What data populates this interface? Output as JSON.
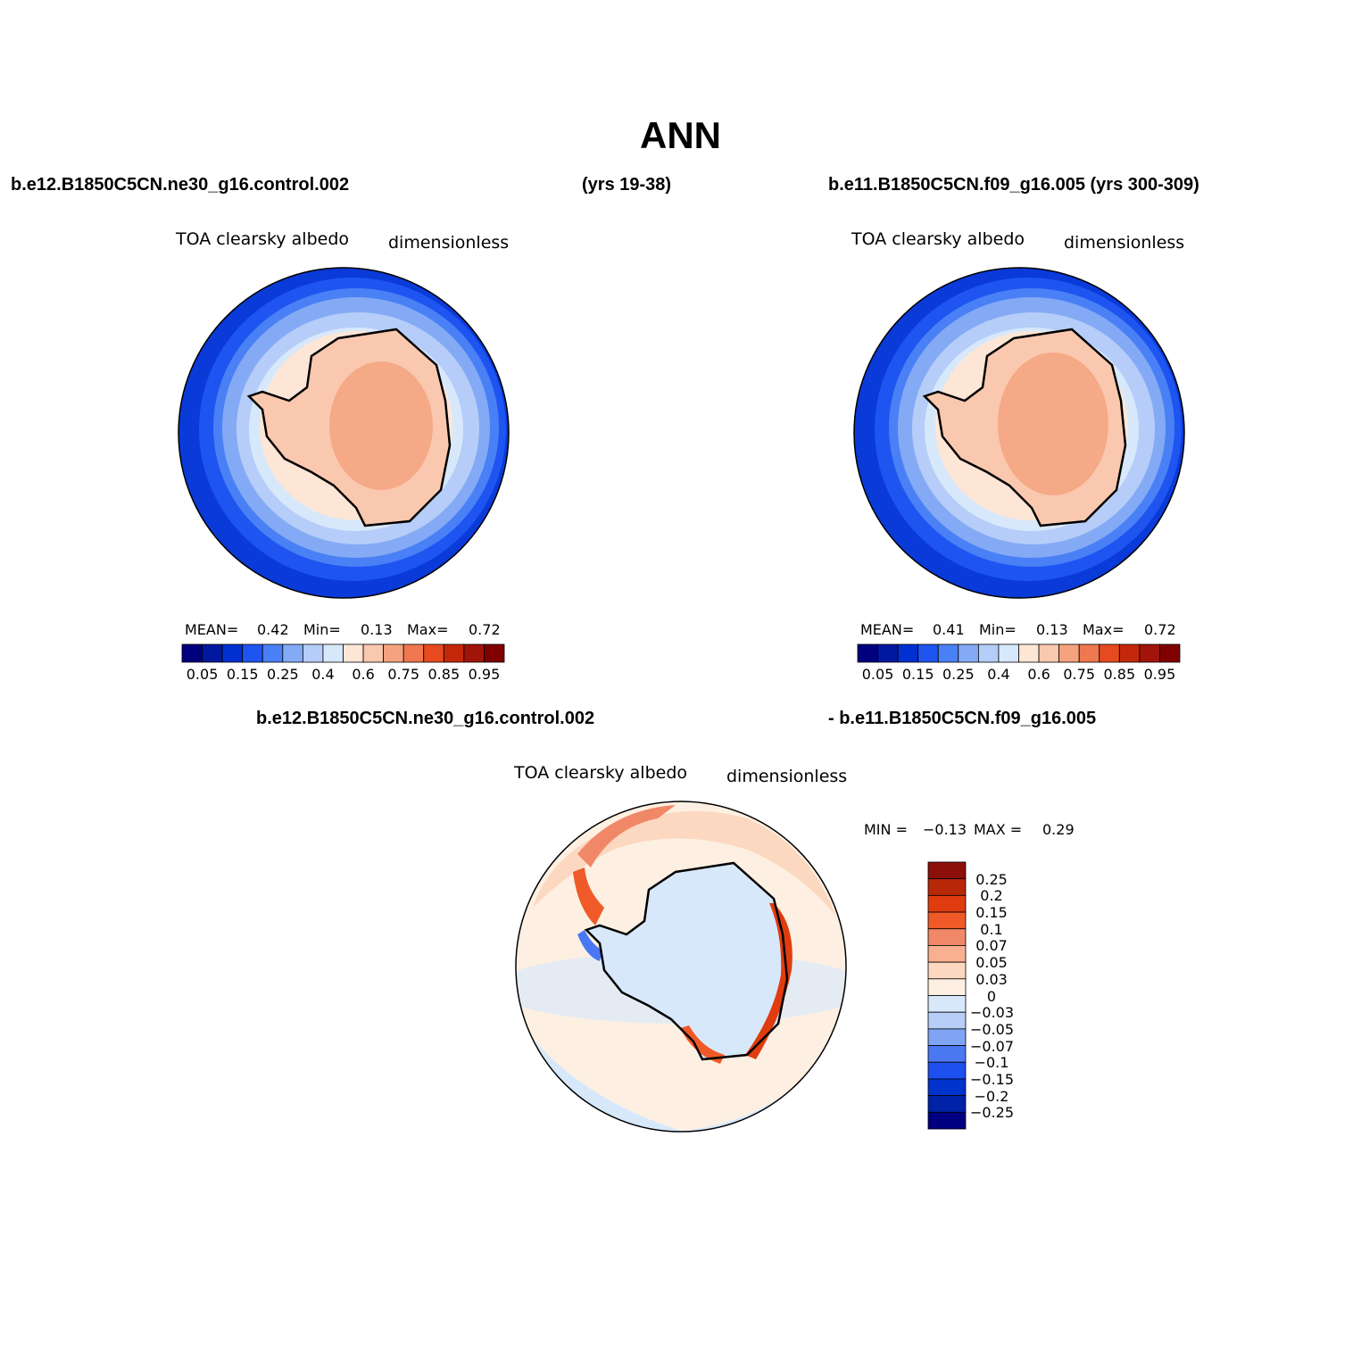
{
  "title": "ANN",
  "header": {
    "case1": "b.e12.B1850C5CN.ne30_g16.control.002",
    "case1_years": "(yrs 19-38)",
    "case2": "b.e11.B1850C5CN.f09_g16.005 (yrs 300-309)"
  },
  "panel1": {
    "variable": "TOA clearsky albedo",
    "units": "dimensionless",
    "stats": {
      "mean_label": "MEAN=",
      "mean": "0.42",
      "min_label": "Min=",
      "min": "0.13",
      "max_label": "Max=",
      "max": "0.72"
    }
  },
  "panel2": {
    "variable": "TOA clearsky albedo",
    "units": "dimensionless",
    "stats": {
      "mean_label": "MEAN=",
      "mean": "0.41",
      "min_label": "Min=",
      "min": "0.13",
      "max_label": "Max=",
      "max": "0.72"
    }
  },
  "diff": {
    "case_a": "b.e12.B1850C5CN.ne30_g16.control.002",
    "case_b": "- b.e11.B1850C5CN.f09_g16.005",
    "variable": "TOA clearsky albedo",
    "units": "dimensionless",
    "stats": {
      "min_label": "MIN =",
      "min": "-0.13",
      "max_label": "MAX =",
      "max": "0.29"
    }
  },
  "colorbar_abs": {
    "colors": [
      "#00007f",
      "#0018a0",
      "#0030d0",
      "#1e55f0",
      "#4a80f5",
      "#84aaf5",
      "#b5cdf8",
      "#d8e8fb",
      "#fde6d6",
      "#fac8af",
      "#f5a37f",
      "#f07850",
      "#e64a1e",
      "#c4280a",
      "#a0140a",
      "#800000"
    ],
    "tick_labels": [
      "0.05",
      "0.15",
      "0.25",
      "0.4",
      "0.6",
      "0.75",
      "0.85",
      "0.95"
    ]
  },
  "colorbar_diff": {
    "colors": [
      "#000080",
      "#0022a8",
      "#0033cc",
      "#1e50f0",
      "#4a78f2",
      "#80a4f5",
      "#b8cef8",
      "#d8e8fb",
      "#fdf0e2",
      "#fcd8c0",
      "#f8b090",
      "#f08868",
      "#f05a28",
      "#e03c10",
      "#b82808",
      "#8c0f0a"
    ],
    "tick_labels": [
      "-0.25",
      "-0.2",
      "-0.15",
      "-0.1",
      "-0.07",
      "-0.05",
      "-0.03",
      "0",
      "0.03",
      "0.05",
      "0.07",
      "0.1",
      "0.15",
      "0.2",
      "0.25"
    ]
  }
}
